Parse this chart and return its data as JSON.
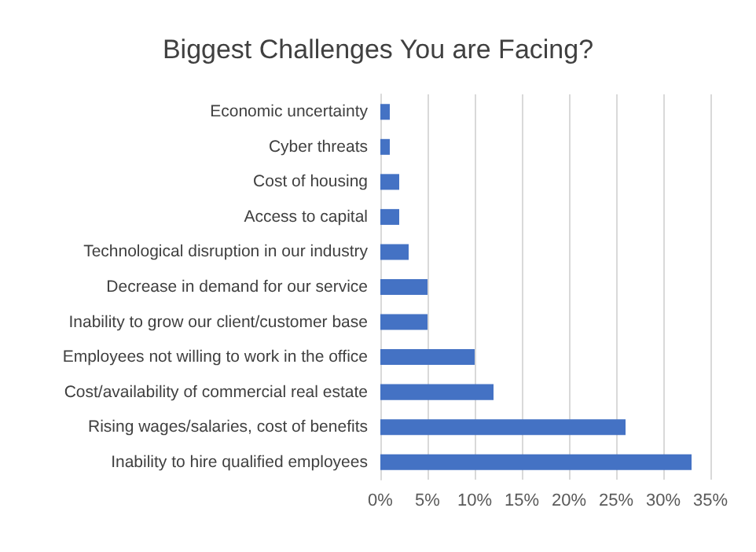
{
  "chart_data": {
    "type": "bar",
    "orientation": "horizontal",
    "title": "Biggest Challenges You are Facing?",
    "categories": [
      "Economic uncertainty",
      "Cyber threats",
      "Cost of housing",
      "Access to capital",
      "Technological disruption in our industry",
      "Decrease in demand for our service",
      "Inability to grow our client/customer base",
      "Employees not willing to work in the office",
      "Cost/availability of commercial real estate",
      "Rising wages/salaries, cost of benefits",
      "Inability to hire qualified employees"
    ],
    "values": [
      1,
      1,
      2,
      2,
      3,
      5,
      5,
      10,
      12,
      26,
      33
    ],
    "color": "#4472c4",
    "xlim": [
      0,
      35
    ],
    "xticks": [
      {
        "value": 0,
        "label": "0%"
      },
      {
        "value": 5,
        "label": "5%"
      },
      {
        "value": 10,
        "label": "10%"
      },
      {
        "value": 15,
        "label": "15%"
      },
      {
        "value": 20,
        "label": "20%"
      },
      {
        "value": 25,
        "label": "25%"
      },
      {
        "value": 30,
        "label": "30%"
      },
      {
        "value": 35,
        "label": "35%"
      }
    ],
    "grid": "x"
  }
}
